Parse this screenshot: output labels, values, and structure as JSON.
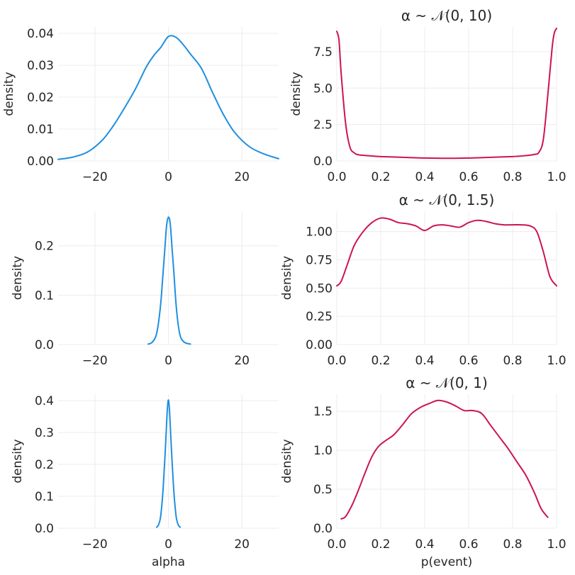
{
  "colors": {
    "left": "#1f8fe0",
    "right": "#cc1452"
  },
  "chart_data": [
    {
      "type": "line",
      "title": "",
      "xlabel": "",
      "ylabel": "density",
      "xlim": [
        -30,
        30
      ],
      "ylim": [
        0,
        0.042
      ],
      "xticks": [
        -20,
        0,
        20
      ],
      "xtick_labels": [
        "−20",
        "0",
        "20"
      ],
      "yticks": [
        0,
        0.01,
        0.02,
        0.03,
        0.04
      ],
      "ytick_labels": [
        "0.00",
        "0.01",
        "0.02",
        "0.03",
        "0.04"
      ],
      "series": [
        {
          "name": "alpha",
          "color": "#1f8fe0",
          "x": [
            -30,
            -26,
            -22,
            -18,
            -15,
            -12,
            -9,
            -6,
            -4,
            -2,
            0,
            2,
            4,
            6,
            9,
            12,
            15,
            18,
            22,
            26,
            30
          ],
          "y": [
            0.0005,
            0.0012,
            0.0028,
            0.0065,
            0.011,
            0.0165,
            0.0225,
            0.0295,
            0.033,
            0.0357,
            0.039,
            0.0388,
            0.0365,
            0.0335,
            0.029,
            0.0215,
            0.0145,
            0.009,
            0.0045,
            0.0022,
            0.0007
          ]
        }
      ]
    },
    {
      "type": "line",
      "title": "α ~ 𝒩(0, 10)",
      "xlabel": "",
      "ylabel": "density",
      "xlim": [
        0,
        1
      ],
      "ylim": [
        0,
        9.2
      ],
      "xticks": [
        0,
        0.2,
        0.4,
        0.6,
        0.8,
        1.0
      ],
      "xtick_labels": [
        "0.0",
        "0.2",
        "0.4",
        "0.6",
        "0.8",
        "1.0"
      ],
      "yticks": [
        0,
        2.5,
        5,
        7.5
      ],
      "ytick_labels": [
        "0.0",
        "2.5",
        "5.0",
        "7.5"
      ],
      "series": [
        {
          "name": "p(event)",
          "color": "#cc1452",
          "x": [
            0.0,
            0.01,
            0.02,
            0.04,
            0.06,
            0.08,
            0.1,
            0.15,
            0.2,
            0.3,
            0.4,
            0.5,
            0.6,
            0.7,
            0.8,
            0.85,
            0.9,
            0.92,
            0.94,
            0.96,
            0.98,
            0.99,
            1.0
          ],
          "y": [
            8.9,
            8.3,
            6.0,
            2.6,
            0.95,
            0.55,
            0.42,
            0.35,
            0.3,
            0.25,
            0.2,
            0.18,
            0.2,
            0.25,
            0.3,
            0.35,
            0.45,
            0.6,
            1.5,
            4.5,
            7.8,
            8.8,
            9.1
          ]
        }
      ]
    },
    {
      "type": "line",
      "title": "",
      "xlabel": "",
      "ylabel": "density",
      "xlim": [
        -30,
        30
      ],
      "ylim": [
        0,
        0.27
      ],
      "xticks": [
        -20,
        0,
        20
      ],
      "xtick_labels": [
        "−20",
        "0",
        "20"
      ],
      "yticks": [
        0,
        0.1,
        0.2
      ],
      "ytick_labels": [
        "0.0",
        "0.1",
        "0.2"
      ],
      "series": [
        {
          "name": "alpha",
          "color": "#1f8fe0",
          "x": [
            -5.5,
            -4.5,
            -3.5,
            -3,
            -2.5,
            -2,
            -1.5,
            -1,
            -0.5,
            0,
            0.5,
            1,
            1.5,
            2,
            2.5,
            3,
            3.5,
            4.5,
            6
          ],
          "y": [
            0.001,
            0.004,
            0.015,
            0.03,
            0.055,
            0.09,
            0.14,
            0.19,
            0.24,
            0.258,
            0.245,
            0.195,
            0.145,
            0.09,
            0.05,
            0.025,
            0.012,
            0.004,
            0.001
          ]
        }
      ]
    },
    {
      "type": "line",
      "title": "α ~ 𝒩(0, 1.5)",
      "xlabel": "",
      "ylabel": "density",
      "xlim": [
        0,
        1
      ],
      "ylim": [
        0,
        1.18
      ],
      "xticks": [
        0,
        0.2,
        0.4,
        0.6,
        0.8,
        1.0
      ],
      "xtick_labels": [
        "0.0",
        "0.2",
        "0.4",
        "0.6",
        "0.8",
        "1.0"
      ],
      "yticks": [
        0,
        0.25,
        0.5,
        0.75,
        1.0
      ],
      "ytick_labels": [
        "0.00",
        "0.25",
        "0.50",
        "0.75",
        "1.00"
      ],
      "series": [
        {
          "name": "p(event)",
          "color": "#cc1452",
          "x": [
            0.0,
            0.02,
            0.05,
            0.08,
            0.12,
            0.16,
            0.2,
            0.24,
            0.28,
            0.32,
            0.36,
            0.4,
            0.44,
            0.48,
            0.52,
            0.56,
            0.6,
            0.64,
            0.68,
            0.72,
            0.76,
            0.8,
            0.84,
            0.88,
            0.91,
            0.94,
            0.97,
            1.0
          ],
          "y": [
            0.52,
            0.56,
            0.72,
            0.88,
            1.0,
            1.08,
            1.12,
            1.11,
            1.08,
            1.07,
            1.05,
            1.01,
            1.05,
            1.06,
            1.05,
            1.04,
            1.08,
            1.1,
            1.09,
            1.07,
            1.06,
            1.06,
            1.06,
            1.05,
            1.0,
            0.82,
            0.6,
            0.52
          ]
        }
      ]
    },
    {
      "type": "line",
      "title": "",
      "xlabel": "alpha",
      "ylabel": "density",
      "xlim": [
        -30,
        30
      ],
      "ylim": [
        0,
        0.42
      ],
      "xticks": [
        -20,
        0,
        20
      ],
      "xtick_labels": [
        "−20",
        "0",
        "20"
      ],
      "yticks": [
        0,
        0.1,
        0.2,
        0.3,
        0.4
      ],
      "ytick_labels": [
        "0.0",
        "0.1",
        "0.2",
        "0.3",
        "0.4"
      ],
      "series": [
        {
          "name": "alpha",
          "color": "#1f8fe0",
          "x": [
            -3.2,
            -2.7,
            -2.2,
            -1.8,
            -1.4,
            -1.0,
            -0.6,
            -0.3,
            0,
            0.3,
            0.6,
            1.0,
            1.4,
            1.8,
            2.2,
            2.7,
            3.2
          ],
          "y": [
            0.003,
            0.01,
            0.03,
            0.07,
            0.13,
            0.21,
            0.3,
            0.37,
            0.402,
            0.37,
            0.3,
            0.21,
            0.13,
            0.07,
            0.03,
            0.01,
            0.003
          ]
        }
      ]
    },
    {
      "type": "line",
      "title": "α ~ 𝒩(0, 1)",
      "xlabel": "p(event)",
      "ylabel": "density",
      "xlim": [
        0,
        1
      ],
      "ylim": [
        0,
        1.72
      ],
      "xticks": [
        0,
        0.2,
        0.4,
        0.6,
        0.8,
        1.0
      ],
      "xtick_labels": [
        "0.0",
        "0.2",
        "0.4",
        "0.6",
        "0.8",
        "1.0"
      ],
      "yticks": [
        0,
        0.5,
        1.0,
        1.5
      ],
      "ytick_labels": [
        "0.0",
        "0.5",
        "1.0",
        "1.5"
      ],
      "series": [
        {
          "name": "p(event)",
          "color": "#cc1452",
          "x": [
            0.02,
            0.04,
            0.07,
            0.1,
            0.13,
            0.16,
            0.19,
            0.22,
            0.26,
            0.3,
            0.34,
            0.38,
            0.42,
            0.46,
            0.5,
            0.54,
            0.58,
            0.62,
            0.66,
            0.7,
            0.74,
            0.78,
            0.82,
            0.86,
            0.9,
            0.93,
            0.96
          ],
          "y": [
            0.12,
            0.15,
            0.3,
            0.5,
            0.72,
            0.92,
            1.05,
            1.12,
            1.2,
            1.33,
            1.47,
            1.55,
            1.6,
            1.64,
            1.62,
            1.57,
            1.51,
            1.51,
            1.47,
            1.32,
            1.17,
            1.02,
            0.85,
            0.68,
            0.45,
            0.25,
            0.14
          ]
        }
      ]
    }
  ]
}
